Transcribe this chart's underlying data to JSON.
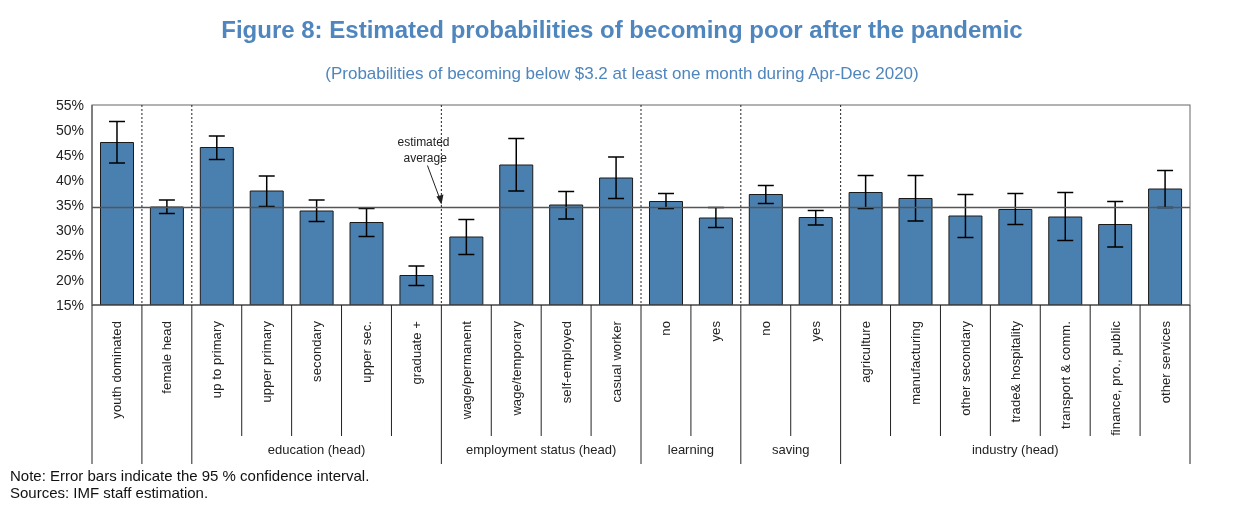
{
  "chart_data": {
    "type": "bar",
    "title": "Figure 8: Estimated probabilities of becoming poor after the pandemic",
    "subtitle": "(Probabilities of becoming below $3.2 at least one month during Apr-Dec 2020)",
    "categories": [
      "youth dominated",
      "female head",
      "up to primary",
      "upper primary",
      "secondary",
      "upper sec.",
      "graduate +",
      "wage/permanent",
      "wage/temporary",
      "self-employed",
      "casual worker",
      "no",
      "yes",
      "no",
      "yes",
      "agriculture",
      "manufacturing",
      "other secondary",
      "trade& hospitality",
      "transport & comm.",
      "finance, pro., public",
      "other services"
    ],
    "values": [
      47.5,
      34.6,
      46.5,
      37.8,
      33.8,
      31.5,
      20.9,
      28.6,
      43.0,
      35.0,
      40.4,
      35.7,
      32.4,
      37.1,
      32.5,
      37.5,
      36.3,
      32.8,
      34.1,
      32.6,
      31.1,
      38.2
    ],
    "errors": [
      [
        43.4,
        51.7
      ],
      [
        33.3,
        36.0
      ],
      [
        44.1,
        48.8
      ],
      [
        34.7,
        40.8
      ],
      [
        31.7,
        36.0
      ],
      [
        28.7,
        34.3
      ],
      [
        18.9,
        22.8
      ],
      [
        25.1,
        32.1
      ],
      [
        37.8,
        48.3
      ],
      [
        32.2,
        37.7
      ],
      [
        36.3,
        44.6
      ],
      [
        34.3,
        37.3
      ],
      [
        30.5,
        34.5
      ],
      [
        35.3,
        38.9
      ],
      [
        31.0,
        33.9
      ],
      [
        34.3,
        40.9
      ],
      [
        31.8,
        40.9
      ],
      [
        28.5,
        37.1
      ],
      [
        31.1,
        37.3
      ],
      [
        27.9,
        37.5
      ],
      [
        26.6,
        35.7
      ],
      [
        34.5,
        41.9
      ]
    ],
    "color": "#4a80b0",
    "ylim": [
      15,
      55
    ],
    "yticks": [
      {
        "value": 15,
        "label": "15%"
      },
      {
        "value": 20,
        "label": "20%"
      },
      {
        "value": 25,
        "label": "25%"
      },
      {
        "value": 30,
        "label": "30%"
      },
      {
        "value": 35,
        "label": "35%"
      },
      {
        "value": 40,
        "label": "40%"
      },
      {
        "value": 45,
        "label": "45%"
      },
      {
        "value": 50,
        "label": "50%"
      },
      {
        "value": 55,
        "label": "55%"
      }
    ],
    "ref_lines": [
      {
        "axis": "y",
        "value": 34.5,
        "label": "estimated average",
        "color": "#555555"
      }
    ],
    "annotations": [
      "education (head)",
      "employment status (head)",
      "learning",
      "saving",
      "industry (head)",
      "Note: Error bars indicate the 95 % confidence interval.",
      "Sources: IMF staff estimation."
    ],
    "grid": false,
    "legend": false
  }
}
